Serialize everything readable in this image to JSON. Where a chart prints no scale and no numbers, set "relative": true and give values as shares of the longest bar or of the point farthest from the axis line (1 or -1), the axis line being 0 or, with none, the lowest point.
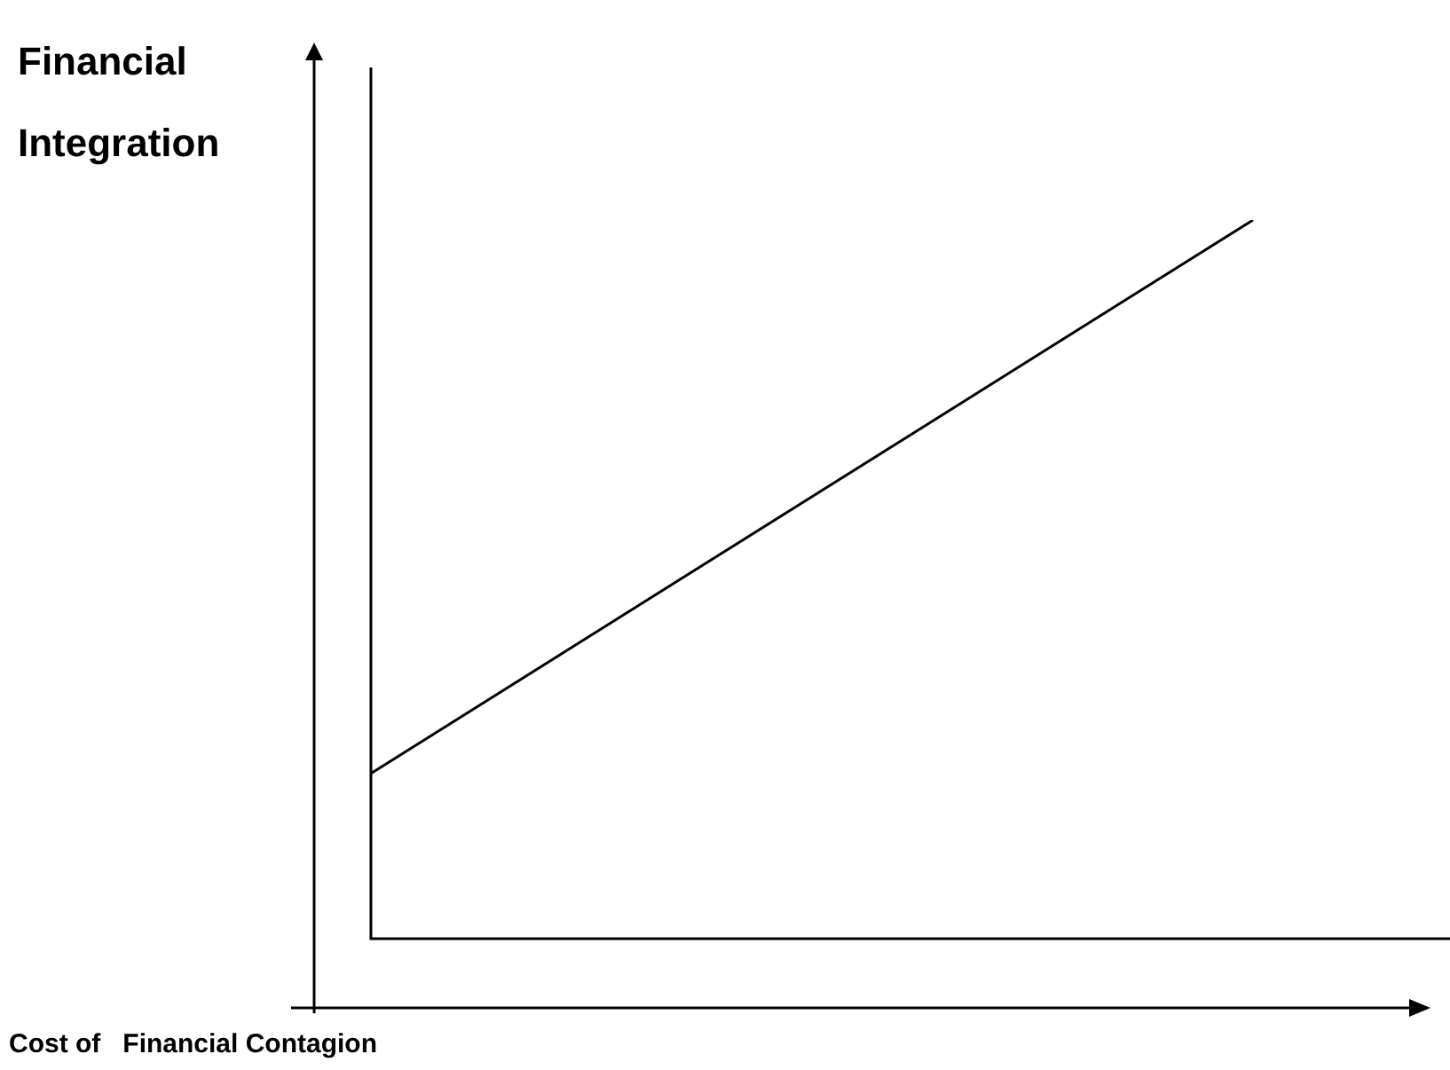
{
  "chart_data": {
    "type": "line",
    "relative": true,
    "categories": [
      null,
      null
    ],
    "values": [
      0.23,
      1
    ],
    "color": "#000000",
    "xlabel": "Cost of   Financial Contagion",
    "ylabel": "Financial Integration",
    "marker": "none"
  }
}
